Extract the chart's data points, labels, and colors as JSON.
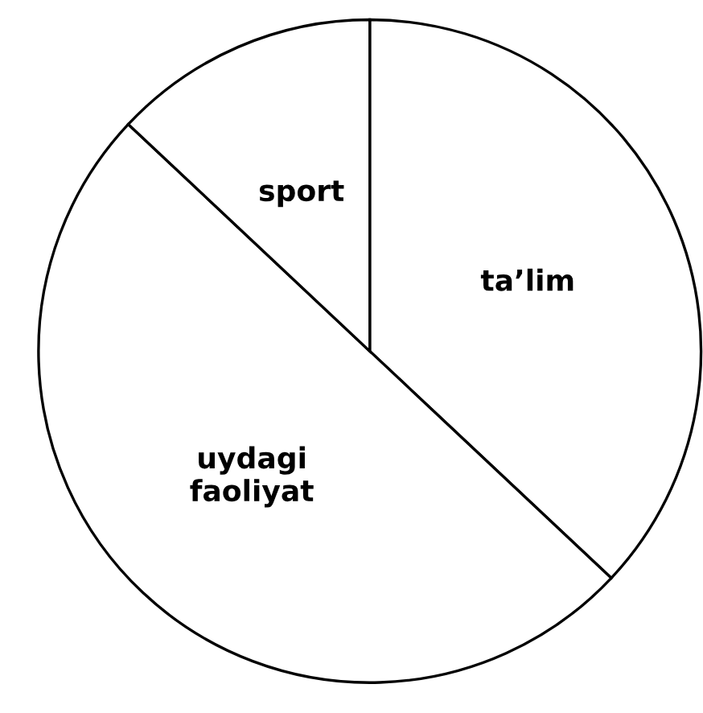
{
  "chart_data": {
    "type": "pie",
    "categories": [
      "ta’lim",
      "uydagi\nfaoliyat",
      "sport"
    ],
    "values": [
      37,
      50,
      13
    ],
    "colors": [
      "#ffffff",
      "#ffffff",
      "#ffffff"
    ],
    "legend": false
  }
}
